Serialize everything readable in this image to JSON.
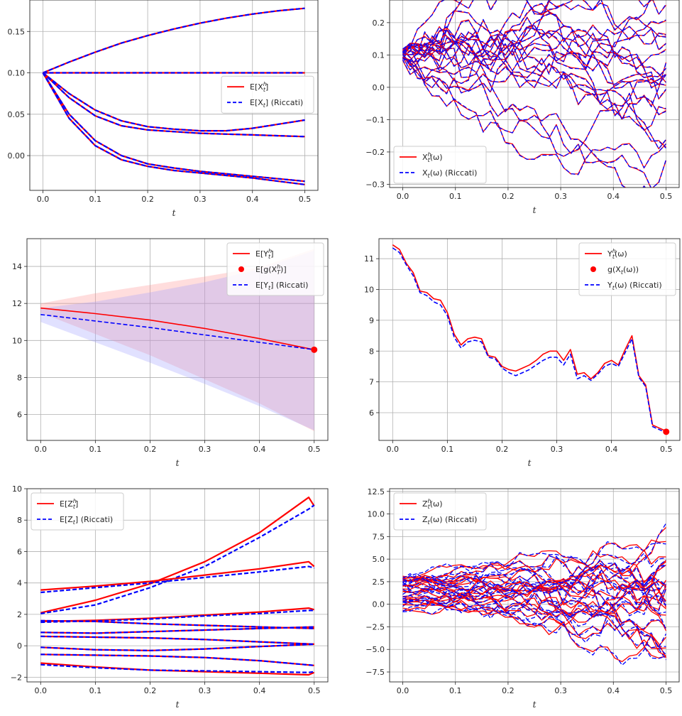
{
  "chart_data": [
    {
      "type": "line",
      "xlim": [
        -0.025,
        0.525
      ],
      "ylim": [
        -0.042,
        0.188
      ],
      "xticks": [
        0.0,
        0.1,
        0.2,
        0.3,
        0.4,
        0.5
      ],
      "xticklabels": [
        "0.0",
        "0.1",
        "0.2",
        "0.3",
        "0.4",
        "0.5"
      ],
      "yticks": [
        0.0,
        0.05,
        0.1,
        0.15
      ],
      "yticklabels": [
        "0.00",
        "0.05",
        "0.10",
        "0.15"
      ],
      "xlabel": "t",
      "grid": true,
      "legend_position": "center-right",
      "legend": [
        {
          "label": "E[X_t^h]",
          "text": "E[X",
          "sub": "t",
          "sup": "h",
          "tail": "]",
          "color": "#ff0000",
          "style": "solid"
        },
        {
          "label": "E[X_t] (Riccati)",
          "text": "E[X",
          "sub": "t",
          "sup": "",
          "tail": "] (Riccati)",
          "color": "#0000ff",
          "style": "dashed"
        }
      ],
      "curves": [
        {
          "x": [
            0,
            0.05,
            0.1,
            0.15,
            0.2,
            0.25,
            0.3,
            0.35,
            0.4,
            0.45,
            0.5
          ],
          "y": [
            0.1,
            0.113,
            0.125,
            0.136,
            0.145,
            0.153,
            0.16,
            0.166,
            0.171,
            0.175,
            0.178
          ]
        },
        {
          "x": [
            0,
            0.1,
            0.2,
            0.3,
            0.4,
            0.5
          ],
          "y": [
            0.1,
            0.1,
            0.1,
            0.1,
            0.1,
            0.1
          ]
        },
        {
          "x": [
            0,
            0.05,
            0.1,
            0.15,
            0.2,
            0.25,
            0.3,
            0.35,
            0.4,
            0.45,
            0.5
          ],
          "y": [
            0.1,
            0.075,
            0.055,
            0.042,
            0.035,
            0.032,
            0.03,
            0.03,
            0.033,
            0.038,
            0.043
          ]
        },
        {
          "x": [
            0,
            0.05,
            0.1,
            0.15,
            0.2,
            0.25,
            0.3,
            0.35,
            0.4,
            0.45,
            0.5
          ],
          "y": [
            0.1,
            0.07,
            0.048,
            0.036,
            0.031,
            0.029,
            0.027,
            0.026,
            0.025,
            0.024,
            0.023
          ]
        },
        {
          "x": [
            0,
            0.05,
            0.1,
            0.15,
            0.2,
            0.25,
            0.3,
            0.35,
            0.4,
            0.45,
            0.5
          ],
          "y": [
            0.1,
            0.05,
            0.018,
            0.0,
            -0.01,
            -0.015,
            -0.019,
            -0.022,
            -0.025,
            -0.028,
            -0.031
          ]
        },
        {
          "x": [
            0,
            0.05,
            0.1,
            0.15,
            0.2,
            0.25,
            0.3,
            0.35,
            0.4,
            0.45,
            0.5
          ],
          "y": [
            0.1,
            0.045,
            0.012,
            -0.005,
            -0.013,
            -0.018,
            -0.021,
            -0.024,
            -0.027,
            -0.031,
            -0.035
          ]
        }
      ]
    },
    {
      "type": "line",
      "xlim": [
        -0.025,
        0.525
      ],
      "ylim": [
        -0.31,
        0.27
      ],
      "xticks": [
        0.0,
        0.1,
        0.2,
        0.3,
        0.4,
        0.5
      ],
      "xticklabels": [
        "0.0",
        "0.1",
        "0.2",
        "0.3",
        "0.4",
        "0.5"
      ],
      "yticks": [
        -0.3,
        -0.2,
        -0.1,
        0.0,
        0.1,
        0.2
      ],
      "yticklabels": [
        "−0.3",
        "−0.2",
        "−0.1",
        "0.0",
        "0.1",
        "0.2"
      ],
      "xlabel": "t",
      "grid": true,
      "legend_position": "lower-left",
      "legend": [
        {
          "label": "X_t^h(ω)",
          "text": "X",
          "sub": "t",
          "sup": "h",
          "tail": "(ω)",
          "color": "#ff0000",
          "style": "solid"
        },
        {
          "label": "X_t(ω) (Riccati)",
          "text": "X",
          "sub": "t",
          "sup": "",
          "tail": "(ω) (Riccati)",
          "color": "#0000ff",
          "style": "dashed"
        }
      ],
      "paths": {
        "count": 22,
        "x0": 0.0,
        "x1": 0.5,
        "steps": 36,
        "start": 0.1,
        "sigma": 0.028,
        "seed": 7
      }
    },
    {
      "type": "line",
      "xlim": [
        -0.025,
        0.525
      ],
      "ylim": [
        4.6,
        15.5
      ],
      "xticks": [
        0.0,
        0.1,
        0.2,
        0.3,
        0.4,
        0.5
      ],
      "xticklabels": [
        "0.0",
        "0.1",
        "0.2",
        "0.3",
        "0.4",
        "0.5"
      ],
      "yticks": [
        6,
        8,
        10,
        12,
        14
      ],
      "yticklabels": [
        "6",
        "8",
        "10",
        "12",
        "14"
      ],
      "xlabel": "t",
      "grid": true,
      "legend_position": "top-right",
      "legend": [
        {
          "label": "E[Y_t^h]",
          "text": "E[Y",
          "sub": "t",
          "sup": "h",
          "tail": "]",
          "color": "#ff0000",
          "style": "solid"
        },
        {
          "label": "E[g(X_T^h)]",
          "text": "E[g(X",
          "sub": "T",
          "sup": "h",
          "tail": ")]",
          "color": "#ff0000",
          "style": "marker"
        },
        {
          "label": "E[Y_t] (Riccati)",
          "text": "E[Y",
          "sub": "t",
          "sup": "",
          "tail": "] (Riccati)",
          "color": "#0000ff",
          "style": "dashed"
        }
      ],
      "series": [
        {
          "x": [
            0,
            0.1,
            0.2,
            0.3,
            0.4,
            0.5
          ],
          "y": [
            11.75,
            11.45,
            11.1,
            10.65,
            10.1,
            9.5
          ],
          "color": "#ff0000",
          "style": "solid"
        },
        {
          "x": [
            0,
            0.1,
            0.2,
            0.3,
            0.4,
            0.5
          ],
          "y": [
            11.4,
            11.05,
            10.7,
            10.3,
            9.9,
            9.5
          ],
          "color": "#0000ff",
          "style": "dashed"
        }
      ],
      "bands": [
        {
          "x": [
            0,
            0.1,
            0.2,
            0.3,
            0.4,
            0.5
          ],
          "upper": [
            12.0,
            12.55,
            13.0,
            13.45,
            13.95,
            14.95
          ],
          "lower": [
            11.5,
            10.35,
            9.2,
            7.9,
            6.6,
            5.1
          ],
          "color": "#ff9090"
        },
        {
          "x": [
            0,
            0.1,
            0.2,
            0.3,
            0.4,
            0.5
          ],
          "upper": [
            11.75,
            12.1,
            12.6,
            13.15,
            13.85,
            14.85
          ],
          "lower": [
            11.0,
            9.9,
            8.8,
            7.65,
            6.45,
            5.15
          ],
          "color": "#9a9aff"
        }
      ],
      "markers": [
        {
          "x": 0.5,
          "y": 9.5,
          "color": "#ff0000"
        }
      ]
    },
    {
      "type": "line",
      "xlim": [
        -0.025,
        0.525
      ],
      "ylim": [
        5.1,
        11.65
      ],
      "xticks": [
        0.0,
        0.1,
        0.2,
        0.3,
        0.4,
        0.5
      ],
      "xticklabels": [
        "0.0",
        "0.1",
        "0.2",
        "0.3",
        "0.4",
        "0.5"
      ],
      "yticks": [
        6,
        7,
        8,
        9,
        10,
        11
      ],
      "yticklabels": [
        "6",
        "7",
        "8",
        "9",
        "10",
        "11"
      ],
      "xlabel": "t",
      "grid": true,
      "legend_position": "top-right",
      "legend": [
        {
          "label": "Y_t^h(ω)",
          "text": "Y",
          "sub": "t",
          "sup": "h",
          "tail": "(ω)",
          "color": "#ff0000",
          "style": "solid"
        },
        {
          "label": "g(X_t(ω))",
          "text": "g(X",
          "sub": "t",
          "sup": "",
          "tail": "(ω))",
          "color": "#ff0000",
          "style": "marker"
        },
        {
          "label": "Y_t(ω) (Riccati)",
          "text": "Y",
          "sub": "t",
          "sup": "",
          "tail": "(ω) (Riccati)",
          "color": "#0000ff",
          "style": "dashed"
        }
      ],
      "series": [
        {
          "x": [
            0,
            0.0125,
            0.025,
            0.0375,
            0.05,
            0.0625,
            0.075,
            0.0875,
            0.1,
            0.1125,
            0.125,
            0.1375,
            0.15,
            0.1625,
            0.175,
            0.1875,
            0.2,
            0.2125,
            0.225,
            0.2375,
            0.25,
            0.2625,
            0.275,
            0.2875,
            0.3,
            0.3125,
            0.325,
            0.3375,
            0.35,
            0.3625,
            0.375,
            0.3875,
            0.4,
            0.4125,
            0.425,
            0.4375,
            0.45,
            0.4625,
            0.475,
            0.4875,
            0.5
          ],
          "y": [
            11.45,
            11.3,
            10.85,
            10.55,
            9.95,
            9.9,
            9.7,
            9.65,
            9.25,
            8.55,
            8.2,
            8.4,
            8.45,
            8.4,
            7.85,
            7.8,
            7.5,
            7.4,
            7.35,
            7.45,
            7.55,
            7.7,
            7.9,
            8.0,
            8.0,
            7.7,
            8.05,
            7.25,
            7.3,
            7.1,
            7.3,
            7.6,
            7.7,
            7.55,
            8.05,
            8.5,
            7.2,
            6.9,
            5.6,
            5.5,
            5.4
          ],
          "color": "#ff0000",
          "style": "solid"
        },
        {
          "x": [
            0,
            0.0125,
            0.025,
            0.0375,
            0.05,
            0.0625,
            0.075,
            0.0875,
            0.1,
            0.1125,
            0.125,
            0.1375,
            0.15,
            0.1625,
            0.175,
            0.1875,
            0.2,
            0.2125,
            0.225,
            0.2375,
            0.25,
            0.2625,
            0.275,
            0.2875,
            0.3,
            0.3125,
            0.325,
            0.3375,
            0.35,
            0.3625,
            0.375,
            0.3875,
            0.4,
            0.4125,
            0.425,
            0.4375,
            0.45,
            0.4625,
            0.475,
            0.4875,
            0.5
          ],
          "y": [
            11.35,
            11.2,
            10.8,
            10.45,
            9.9,
            9.8,
            9.6,
            9.5,
            9.15,
            8.45,
            8.1,
            8.3,
            8.35,
            8.3,
            7.8,
            7.75,
            7.45,
            7.3,
            7.2,
            7.3,
            7.4,
            7.55,
            7.7,
            7.8,
            7.8,
            7.55,
            7.9,
            7.1,
            7.2,
            7.05,
            7.25,
            7.5,
            7.6,
            7.5,
            7.95,
            8.4,
            7.15,
            6.85,
            5.55,
            5.45,
            5.35
          ],
          "color": "#0000ff",
          "style": "dashed"
        }
      ],
      "markers": [
        {
          "x": 0.5,
          "y": 5.38,
          "color": "#ff0000"
        }
      ]
    },
    {
      "type": "line",
      "xlim": [
        -0.025,
        0.525
      ],
      "ylim": [
        -2.3,
        10.0
      ],
      "xticks": [
        0.0,
        0.1,
        0.2,
        0.3,
        0.4,
        0.5
      ],
      "xticklabels": [
        "0.0",
        "0.1",
        "0.2",
        "0.3",
        "0.4",
        "0.5"
      ],
      "yticks": [
        -2,
        0,
        2,
        4,
        6,
        8,
        10
      ],
      "yticklabels": [
        "−2",
        "0",
        "2",
        "4",
        "6",
        "8",
        "10"
      ],
      "xlabel": "t",
      "grid": true,
      "legend_position": "top-left",
      "legend": [
        {
          "label": "E[Z_t^h]",
          "text": "E[Z",
          "sub": "t",
          "sup": "h",
          "tail": "]",
          "color": "#ff0000",
          "style": "solid"
        },
        {
          "label": "E[Z_t] (Riccati)",
          "text": "E[Z",
          "sub": "t",
          "sup": "",
          "tail": "] (Riccati)",
          "color": "#0000ff",
          "style": "dashed"
        }
      ],
      "curves": [
        {
          "x": [
            0,
            0.1,
            0.2,
            0.3,
            0.4,
            0.49,
            0.5
          ],
          "y": [
            2.1,
            2.9,
            3.95,
            5.35,
            7.2,
            9.45,
            8.9
          ],
          "y2": [
            2.05,
            2.6,
            3.7,
            5.05,
            6.9,
            8.7,
            8.95
          ]
        },
        {
          "x": [
            0,
            0.1,
            0.2,
            0.3,
            0.4,
            0.49,
            0.5
          ],
          "y": [
            3.55,
            3.8,
            4.1,
            4.5,
            4.9,
            5.35,
            5.05
          ],
          "y2": [
            3.4,
            3.7,
            4.0,
            4.35,
            4.7,
            5.05,
            4.95
          ]
        },
        {
          "x": [
            0,
            0.1,
            0.2,
            0.3,
            0.4,
            0.49,
            0.5
          ],
          "y": [
            1.55,
            1.62,
            1.75,
            1.95,
            2.15,
            2.4,
            2.3
          ],
          "y2": [
            1.5,
            1.58,
            1.7,
            1.9,
            2.05,
            2.25,
            2.25
          ]
        },
        {
          "x": [
            0,
            0.1,
            0.2,
            0.3,
            0.4,
            0.5
          ],
          "y": [
            1.6,
            1.55,
            1.4,
            1.3,
            1.2,
            1.1
          ],
          "y2": [
            1.6,
            1.55,
            1.4,
            1.3,
            1.2,
            1.1
          ]
        },
        {
          "x": [
            0,
            0.1,
            0.2,
            0.3,
            0.4,
            0.5
          ],
          "y": [
            0.85,
            0.8,
            0.9,
            1.0,
            1.1,
            1.2
          ],
          "y2": [
            0.85,
            0.8,
            0.9,
            1.0,
            1.1,
            1.2
          ]
        },
        {
          "x": [
            0,
            0.1,
            0.2,
            0.3,
            0.4,
            0.5
          ],
          "y": [
            0.6,
            0.55,
            0.5,
            0.4,
            0.25,
            0.1
          ],
          "y2": [
            0.6,
            0.55,
            0.5,
            0.4,
            0.25,
            0.1
          ]
        },
        {
          "x": [
            0,
            0.1,
            0.2,
            0.3,
            0.4,
            0.5
          ],
          "y": [
            -0.1,
            -0.25,
            -0.3,
            -0.2,
            -0.05,
            0.1
          ],
          "y2": [
            -0.1,
            -0.25,
            -0.3,
            -0.2,
            -0.05,
            0.1
          ]
        },
        {
          "x": [
            0,
            0.1,
            0.2,
            0.3,
            0.4,
            0.5
          ],
          "y": [
            -0.55,
            -0.6,
            -0.65,
            -0.75,
            -0.95,
            -1.25
          ],
          "y2": [
            -0.55,
            -0.6,
            -0.65,
            -0.75,
            -0.95,
            -1.25
          ]
        },
        {
          "x": [
            0,
            0.1,
            0.2,
            0.3,
            0.4,
            0.49,
            0.5
          ],
          "y": [
            -1.1,
            -1.35,
            -1.55,
            -1.65,
            -1.75,
            -1.85,
            -1.7
          ],
          "y2": [
            -1.2,
            -1.4,
            -1.55,
            -1.6,
            -1.65,
            -1.7,
            -1.65
          ]
        }
      ]
    },
    {
      "type": "line",
      "xlim": [
        -0.025,
        0.525
      ],
      "ylim": [
        -8.6,
        12.8
      ],
      "xticks": [
        0.0,
        0.1,
        0.2,
        0.3,
        0.4,
        0.5
      ],
      "xticklabels": [
        "0.0",
        "0.1",
        "0.2",
        "0.3",
        "0.4",
        "0.5"
      ],
      "yticks": [
        -7.5,
        -5.0,
        -2.5,
        0.0,
        2.5,
        5.0,
        7.5,
        10.0,
        12.5
      ],
      "yticklabels": [
        "−7.5",
        "−5.0",
        "−2.5",
        "0.0",
        "2.5",
        "5.0",
        "7.5",
        "10.0",
        "12.5"
      ],
      "xlabel": "t",
      "grid": true,
      "legend_position": "top-left",
      "legend": [
        {
          "label": "Z_t^h(ω)",
          "text": "Z",
          "sub": "t",
          "sup": "h",
          "tail": "(ω)",
          "color": "#ff0000",
          "style": "solid"
        },
        {
          "label": "Z_t(ω) (Riccati)",
          "text": "Z",
          "sub": "t",
          "sup": "",
          "tail": "(ω) (Riccati)",
          "color": "#0000ff",
          "style": "dashed"
        }
      ],
      "paths": {
        "count": 22,
        "x0": 0.0,
        "x1": 0.5,
        "steps": 36,
        "start_min": -1.2,
        "start_max": 3.6,
        "sigma": 0.6,
        "seed": 11
      }
    }
  ]
}
